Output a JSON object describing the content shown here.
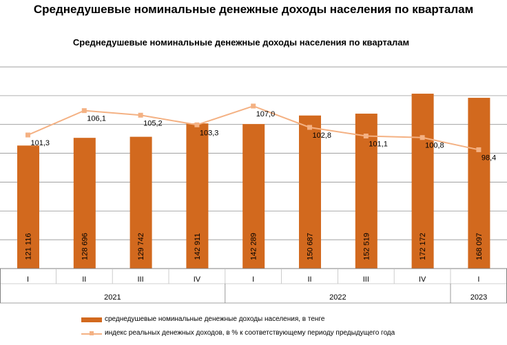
{
  "page_title": "Среднедушевые номинальные денежные доходы населения по кварталам",
  "chart_data": {
    "type": "bar",
    "title": "Среднедушевые номинальные денежные доходы населения по кварталам",
    "categories": [
      "I",
      "II",
      "III",
      "IV",
      "I",
      "II",
      "III",
      "IV",
      "I"
    ],
    "year_groups": [
      {
        "label": "2021",
        "count": 4
      },
      {
        "label": "2022",
        "count": 4
      },
      {
        "label": "2023",
        "count": 1
      }
    ],
    "series": [
      {
        "name": "среднедушевые номинальные денежные доходы населения,  в тенге",
        "kind": "bar",
        "values": [
          121116,
          128696,
          129742,
          142911,
          142289,
          150687,
          152519,
          172172,
          168097
        ],
        "labels": [
          "121 116",
          "128 696",
          "129 742",
          "142 911",
          "142 289",
          "150 687",
          "152 519",
          "172 172",
          "168 097"
        ]
      },
      {
        "name": "индекс реальных денежных доходов, в % к соответствующему периоду предыдущего года",
        "kind": "line",
        "values": [
          101.3,
          106.1,
          105.2,
          103.3,
          107.0,
          102.8,
          101.1,
          100.8,
          98.4
        ],
        "labels": [
          "101,3",
          "106,1",
          "105,2",
          "103,3",
          "107,0",
          "102,8",
          "101,1",
          "100,8",
          "98,4"
        ]
      }
    ],
    "ylim": [
      0,
      200000
    ],
    "grid": true,
    "legend_position": "bottom",
    "colors": {
      "bar": "#D2691E",
      "line": "#F4B183",
      "grid": "#808080"
    }
  }
}
